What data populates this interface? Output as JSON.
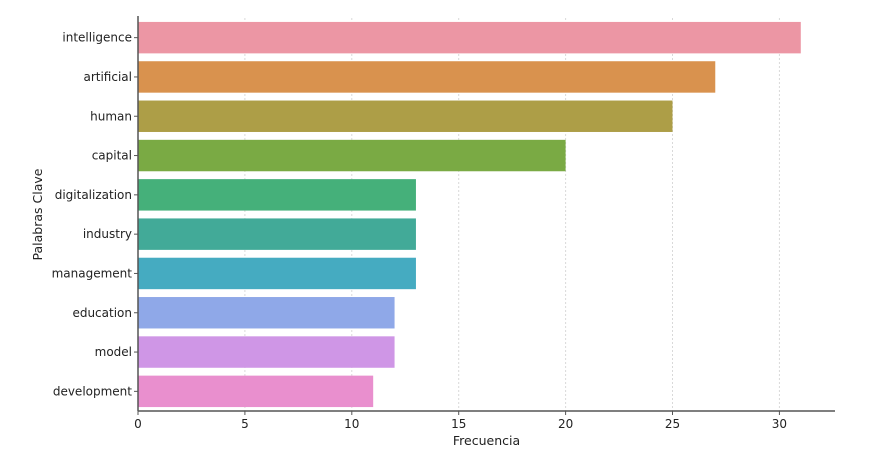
{
  "chart_data": {
    "type": "bar",
    "orientation": "horizontal",
    "categories": [
      "intelligence",
      "artificial",
      "human",
      "capital",
      "digitalization",
      "industry",
      "management",
      "education",
      "model",
      "development"
    ],
    "values": [
      31,
      27,
      25,
      20,
      13,
      13,
      13,
      12,
      12,
      11
    ],
    "colors": [
      "#ec96a4",
      "#d9924e",
      "#ad9e47",
      "#7aaa44",
      "#45b07a",
      "#42aa98",
      "#45abc1",
      "#8fa8e8",
      "#cf96e6",
      "#e98fce"
    ],
    "title": "",
    "xlabel": "Frecuencia",
    "ylabel": "Palabras Clave",
    "xlim": [
      0,
      32.6
    ],
    "xticks": [
      0,
      5,
      10,
      15,
      20,
      25,
      30
    ],
    "grid": "vertical"
  }
}
